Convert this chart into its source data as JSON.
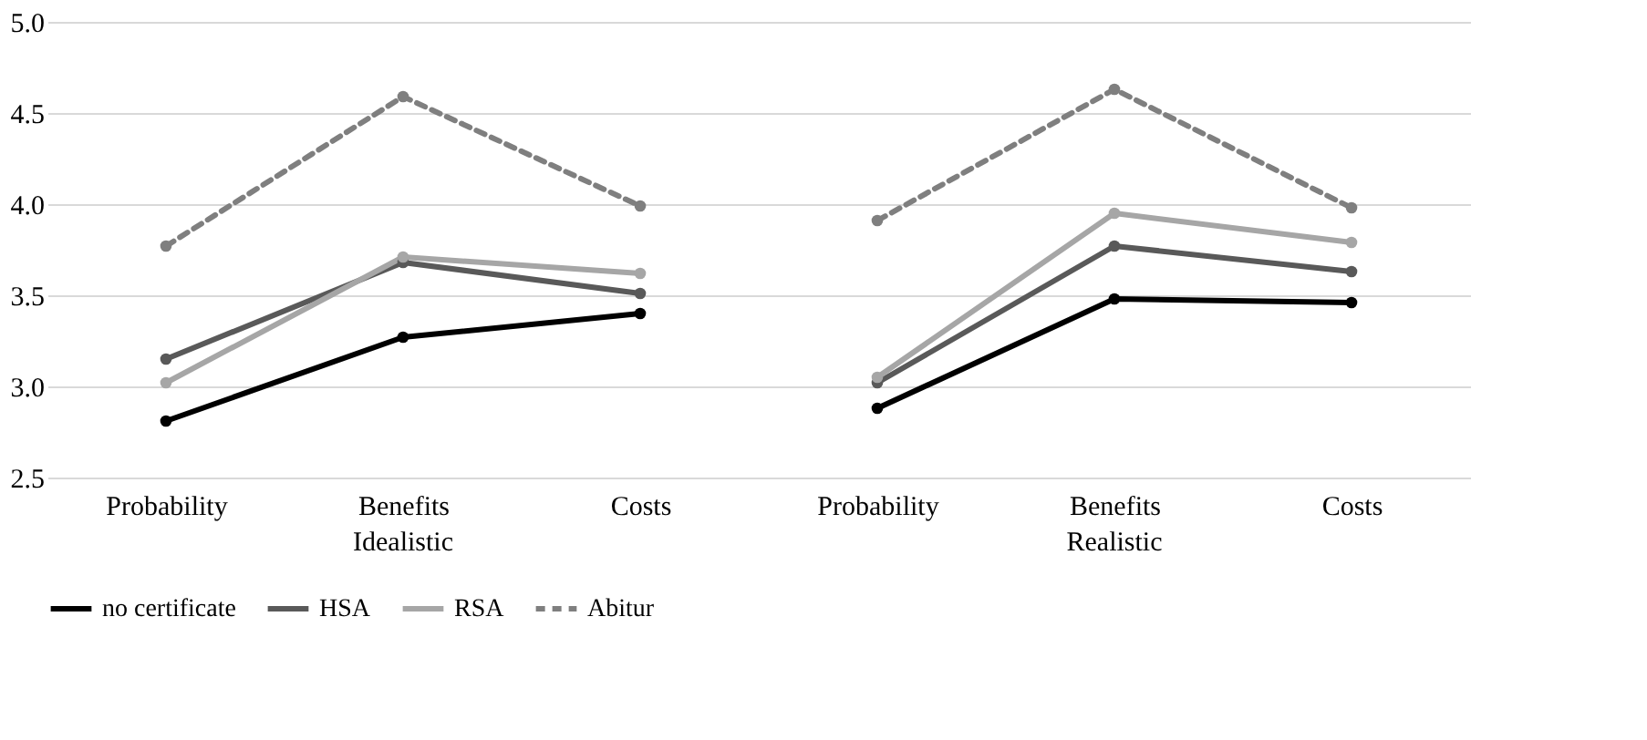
{
  "chart_data": {
    "type": "line",
    "categories": [
      "Probability",
      "Benefits",
      "Costs",
      "Probability",
      "Benefits",
      "Costs"
    ],
    "annotations": [
      "Idealistic",
      "Realistic"
    ],
    "series": [
      {
        "name": "no certificate",
        "color": "#000000",
        "values": [
          2.81,
          3.27,
          3.4,
          2.88,
          3.48,
          3.46
        ],
        "line_style": "solid"
      },
      {
        "name": "HSA",
        "color": "#595959",
        "values": [
          3.15,
          3.68,
          3.51,
          3.02,
          3.77,
          3.63
        ],
        "line_style": "solid"
      },
      {
        "name": "RSA",
        "color": "#a6a6a6",
        "values": [
          3.02,
          3.71,
          3.62,
          3.05,
          3.95,
          3.79
        ],
        "line_style": "solid"
      },
      {
        "name": "Abitur",
        "color": "#7f7f7f",
        "values": [
          3.77,
          4.59,
          3.99,
          3.91,
          4.63,
          3.98
        ],
        "line_style": "dashed"
      }
    ],
    "ylim": [
      2.5,
      5.0
    ],
    "yticks": [
      2.5,
      {
        "value": 3,
        "label": "3.0"
      },
      3.5,
      {
        "value": 4,
        "label": "4.0"
      },
      4.5,
      {
        "value": 5,
        "label": "5.0"
      }
    ],
    "grid": "y",
    "legend": "bottom",
    "marker": "circle"
  }
}
